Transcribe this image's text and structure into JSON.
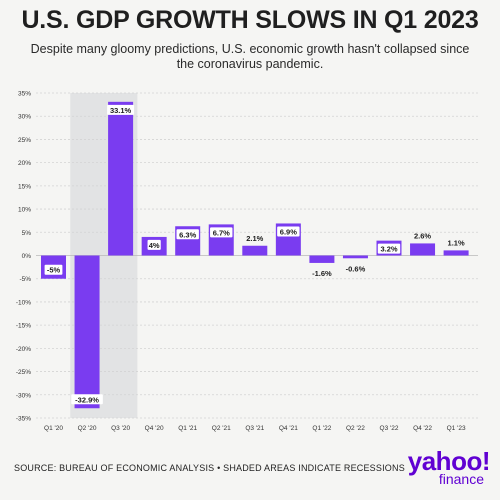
{
  "title": "U.S. GDP GROWTH SLOWS IN Q1 2023",
  "subtitle": "Despite many gloomy predictions, U.S. economic growth hasn't collapsed since the coronavirus pandemic.",
  "source": "SOURCE: BUREAU OF ECONOMIC ANALYSIS • SHADED AREAS INDICATE RECESSIONS",
  "logo": {
    "main": "yahoo!",
    "sub": "finance"
  },
  "colors": {
    "bar": "#7a3cf0",
    "recession": "#e2e3e4",
    "background": "#f5f5f3",
    "logo": "#6001d2"
  },
  "chart_data": {
    "type": "bar",
    "title": "U.S. GDP GROWTH SLOWS IN Q1 2023",
    "categories": [
      "Q1 '20",
      "Q2 '20",
      "Q3 '20",
      "Q4 '20",
      "Q1 '21",
      "Q2 '21",
      "Q3 '21",
      "Q4 '21",
      "Q1 '22",
      "Q2 '22",
      "Q3 '22",
      "Q4 '22",
      "Q1 '23"
    ],
    "values": [
      -5,
      -32.9,
      33.1,
      4,
      6.3,
      6.7,
      2.1,
      6.9,
      -1.6,
      -0.6,
      3.2,
      2.6,
      1.1
    ],
    "data_labels": [
      "-5%",
      "-32.9%",
      "33.1%",
      "4%",
      "6.3%",
      "6.7%",
      "2.1%",
      "6.9%",
      "-1.6%",
      "-0.6%",
      "3.2%",
      "2.6%",
      "1.1%"
    ],
    "ylim": [
      -35,
      35
    ],
    "yticks": [
      35,
      30,
      25,
      20,
      15,
      10,
      5,
      0,
      -5,
      -10,
      -15,
      -20,
      -25,
      -30,
      -35
    ],
    "ytick_labels": [
      "35%",
      "30%",
      "25%",
      "20%",
      "15%",
      "10%",
      "5%",
      "0%",
      "-5%",
      "-10%",
      "-15%",
      "-20%",
      "-25%",
      "-30%",
      "-35%"
    ],
    "recession_shading": [
      "Q2 '20",
      "Q3 '20"
    ],
    "grid": true,
    "xlabel": "",
    "ylabel": ""
  }
}
